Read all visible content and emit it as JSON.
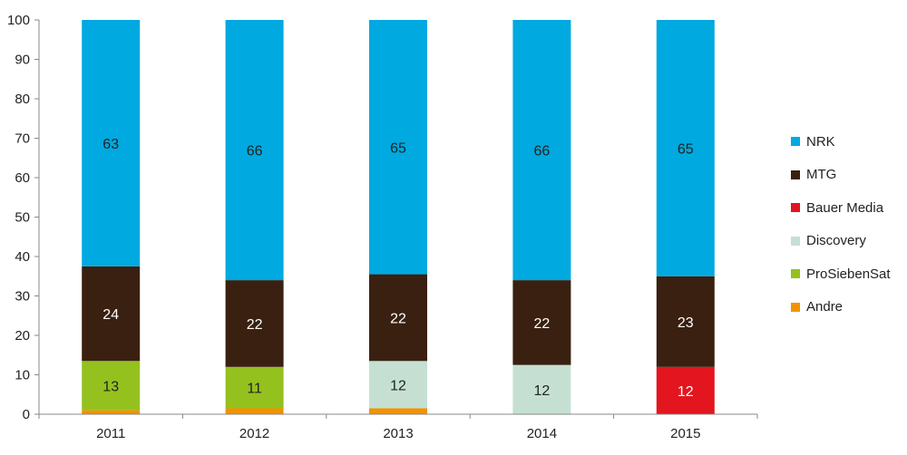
{
  "chart_data": {
    "type": "bar",
    "stacked": true,
    "categories": [
      "2011",
      "2012",
      "2013",
      "2014",
      "2015"
    ],
    "ylim": [
      0,
      100
    ],
    "yticks": [
      0,
      10,
      20,
      30,
      40,
      50,
      60,
      70,
      80,
      90,
      100
    ],
    "title": "",
    "xlabel": "",
    "ylabel": "",
    "grid": false,
    "legend_position": "right",
    "series": [
      {
        "name": "Andre",
        "color": "#f39200",
        "values": [
          1,
          1.5,
          1.5,
          0,
          0
        ],
        "labels": [
          "",
          "",
          "",
          "",
          ""
        ],
        "label_color": "#222222"
      },
      {
        "name": "ProSiebenSat",
        "color": "#95c11f",
        "values": [
          12.5,
          10.5,
          0,
          0,
          0
        ],
        "labels": [
          "13",
          "11",
          "",
          "",
          ""
        ],
        "label_color": "#222222"
      },
      {
        "name": "Discovery",
        "color": "#c5e0d3",
        "values": [
          0,
          0,
          12,
          12.5,
          0
        ],
        "labels": [
          "",
          "",
          "12",
          "12",
          ""
        ],
        "label_color": "#222222"
      },
      {
        "name": "Bauer Media",
        "color": "#e3151f",
        "values": [
          0,
          0,
          0,
          0,
          12
        ],
        "labels": [
          "",
          "",
          "",
          "",
          "12"
        ],
        "label_color": "#ffffff"
      },
      {
        "name": "MTG",
        "color": "#3a2010",
        "values": [
          24,
          22,
          22,
          21.5,
          23
        ],
        "labels": [
          "24",
          "22",
          "22",
          "22",
          "23"
        ],
        "label_color": "#ffffff"
      },
      {
        "name": "NRK",
        "color": "#00a9e0",
        "values": [
          62.5,
          66,
          64.5,
          66,
          65
        ],
        "labels": [
          "63",
          "66",
          "65",
          "66",
          "65"
        ],
        "label_color": "#222222"
      }
    ],
    "legend_order": [
      "NRK",
      "MTG",
      "Bauer Media",
      "Discovery",
      "ProSiebenSat",
      "Andre"
    ]
  }
}
